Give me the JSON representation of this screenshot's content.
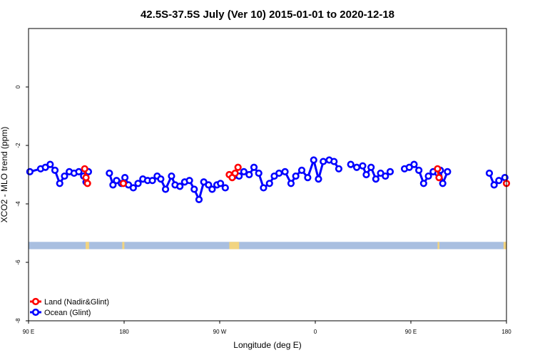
{
  "chart_data": {
    "type": "line",
    "title": "42.5S-37.5S July (Ver 10)   2015-01-01 to 2020-12-18",
    "xlabel": "Longitude (deg E)",
    "ylabel": "XCO2 - MLO trend (ppm)",
    "xlim": [
      90,
      450
    ],
    "ylim": [
      -8,
      2
    ],
    "x_ticks": [
      {
        "value": 90,
        "label": "90 E"
      },
      {
        "value": 162,
        "label": "180"
      },
      {
        "value": 234,
        "label": "90 W"
      },
      {
        "value": 306,
        "label": "0"
      },
      {
        "value": 378,
        "label": "90 E"
      },
      {
        "value": 450,
        "label": "180"
      }
    ],
    "y_ticks": [
      {
        "value": 0,
        "label": "0"
      },
      {
        "value": -2,
        "label": "-2"
      },
      {
        "value": -4,
        "label": "-4"
      },
      {
        "value": -6,
        "label": "-6"
      },
      {
        "value": -8,
        "label": "-8"
      }
    ],
    "legend_position": "bottom-left",
    "series": [
      {
        "name": "Land (Nadir&Glint)",
        "color": "#ff0000",
        "segments": [
          [
            [
              132.3,
              -2.8
            ],
            [
              133.3,
              -3.1
            ],
            [
              134.4,
              -3.3
            ]
          ],
          [
            [
              161.4,
              -3.3
            ]
          ],
          [
            [
              241.2,
              -3.0
            ],
            [
              243.4,
              -3.1
            ],
            [
              245.6,
              -2.95
            ],
            [
              247.8,
              -2.75
            ]
          ],
          [
            [
              398.1,
              -2.8
            ],
            [
              399.2,
              -3.1
            ]
          ],
          [
            [
              450.0,
              -3.3
            ]
          ]
        ]
      },
      {
        "name": "Ocean (Glint)",
        "color": "#0000ff",
        "segments": [
          [
            [
              91.0,
              -2.9
            ],
            [
              99.1,
              -2.8
            ],
            [
              102.7,
              -2.75
            ],
            [
              106.3,
              -2.65
            ],
            [
              109.9,
              -2.85
            ],
            [
              113.5,
              -3.3
            ],
            [
              117.1,
              -3.05
            ],
            [
              120.7,
              -2.9
            ],
            [
              124.3,
              -2.95
            ],
            [
              127.9,
              -2.9
            ],
            [
              131.5,
              -3.05
            ],
            [
              133.3,
              -3.25
            ],
            [
              135.1,
              -2.9
            ]
          ],
          [
            [
              150.9,
              -2.95
            ],
            [
              153.6,
              -3.35
            ],
            [
              156.3,
              -3.2
            ],
            [
              159.9,
              -3.3
            ],
            [
              162.6,
              -3.1
            ],
            [
              165.3,
              -3.35
            ],
            [
              168.9,
              -3.45
            ],
            [
              172.5,
              -3.3
            ],
            [
              176.1,
              -3.15
            ],
            [
              179.7,
              -3.2
            ],
            [
              183.3,
              -3.2
            ],
            [
              186.9,
              -3.05
            ],
            [
              189.6,
              -3.15
            ],
            [
              193.2,
              -3.5
            ],
            [
              197.7,
              -3.05
            ],
            [
              200.4,
              -3.35
            ],
            [
              204.0,
              -3.4
            ],
            [
              207.6,
              -3.25
            ],
            [
              211.2,
              -3.2
            ],
            [
              214.8,
              -3.5
            ],
            [
              218.4,
              -3.85
            ],
            [
              222.0,
              -3.25
            ],
            [
              225.6,
              -3.35
            ],
            [
              228.3,
              -3.5
            ],
            [
              231.9,
              -3.35
            ],
            [
              234.6,
              -3.3
            ],
            [
              238.2,
              -3.45
            ]
          ],
          [
            [
              244.5,
              -3.05
            ],
            [
              248.6,
              -3.05
            ],
            [
              252.2,
              -2.9
            ],
            [
              256.2,
              -3.0
            ],
            [
              259.8,
              -2.75
            ],
            [
              263.4,
              -2.95
            ],
            [
              267.0,
              -3.45
            ],
            [
              271.5,
              -3.3
            ],
            [
              275.1,
              -3.05
            ],
            [
              278.7,
              -2.95
            ],
            [
              283.2,
              -2.9
            ],
            [
              287.7,
              -3.3
            ],
            [
              291.3,
              -3.05
            ],
            [
              295.8,
              -2.85
            ],
            [
              300.3,
              -3.1
            ],
            [
              304.8,
              -2.5
            ],
            [
              308.4,
              -3.15
            ],
            [
              312.0,
              -2.55
            ],
            [
              316.5,
              -2.5
            ],
            [
              320.1,
              -2.55
            ],
            [
              323.7,
              -2.8
            ]
          ],
          [
            [
              332.7,
              -2.65
            ],
            [
              337.2,
              -2.75
            ],
            [
              341.7,
              -2.7
            ],
            [
              344.4,
              -3.0
            ],
            [
              348.0,
              -2.75
            ],
            [
              351.6,
              -3.15
            ],
            [
              355.2,
              -2.95
            ],
            [
              358.8,
              -3.05
            ],
            [
              362.4,
              -2.9
            ]
          ],
          [
            [
              373.2,
              -2.8
            ],
            [
              376.8,
              -2.75
            ],
            [
              380.4,
              -2.65
            ],
            [
              384.0,
              -2.85
            ],
            [
              387.6,
              -3.3
            ],
            [
              391.2,
              -3.05
            ],
            [
              394.8,
              -2.9
            ],
            [
              398.4,
              -2.95
            ],
            [
              400.2,
              -2.85
            ],
            [
              402.0,
              -3.3
            ],
            [
              405.6,
              -2.9
            ]
          ],
          [
            [
              437.1,
              -2.95
            ],
            [
              440.7,
              -3.35
            ],
            [
              444.3,
              -3.2
            ],
            [
              448.8,
              -3.1
            ]
          ]
        ]
      }
    ],
    "land_mask": {
      "y_range": [
        -5.55,
        -5.3
      ],
      "ocean_color": "#a9bfe0",
      "land_color": "#f2d480",
      "land_intervals": [
        [
          133.0,
          135.6
        ],
        [
          160.6,
          162.2
        ],
        [
          241.2,
          248.6
        ],
        [
          398.1,
          399.4
        ],
        [
          447.8,
          450.0
        ]
      ]
    }
  }
}
